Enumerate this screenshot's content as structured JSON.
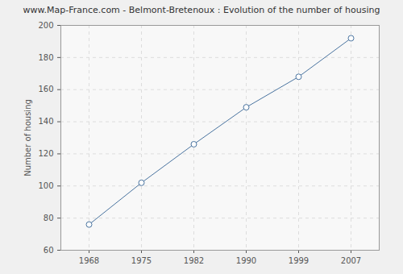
{
  "chart_data": {
    "type": "line",
    "title": "www.Map-France.com - Belmont-Bretenoux : Evolution of the number of housing",
    "y_label": "Number of housing",
    "categories": [
      "1968",
      "1975",
      "1982",
      "1990",
      "1999",
      "2007"
    ],
    "values": [
      76,
      102,
      126,
      149,
      168,
      192
    ],
    "color": "#4a74a0",
    "marker": "circle",
    "ylim": [
      60,
      200
    ],
    "yticks": [
      60,
      80,
      100,
      120,
      140,
      160,
      180,
      200
    ],
    "grid": true
  }
}
